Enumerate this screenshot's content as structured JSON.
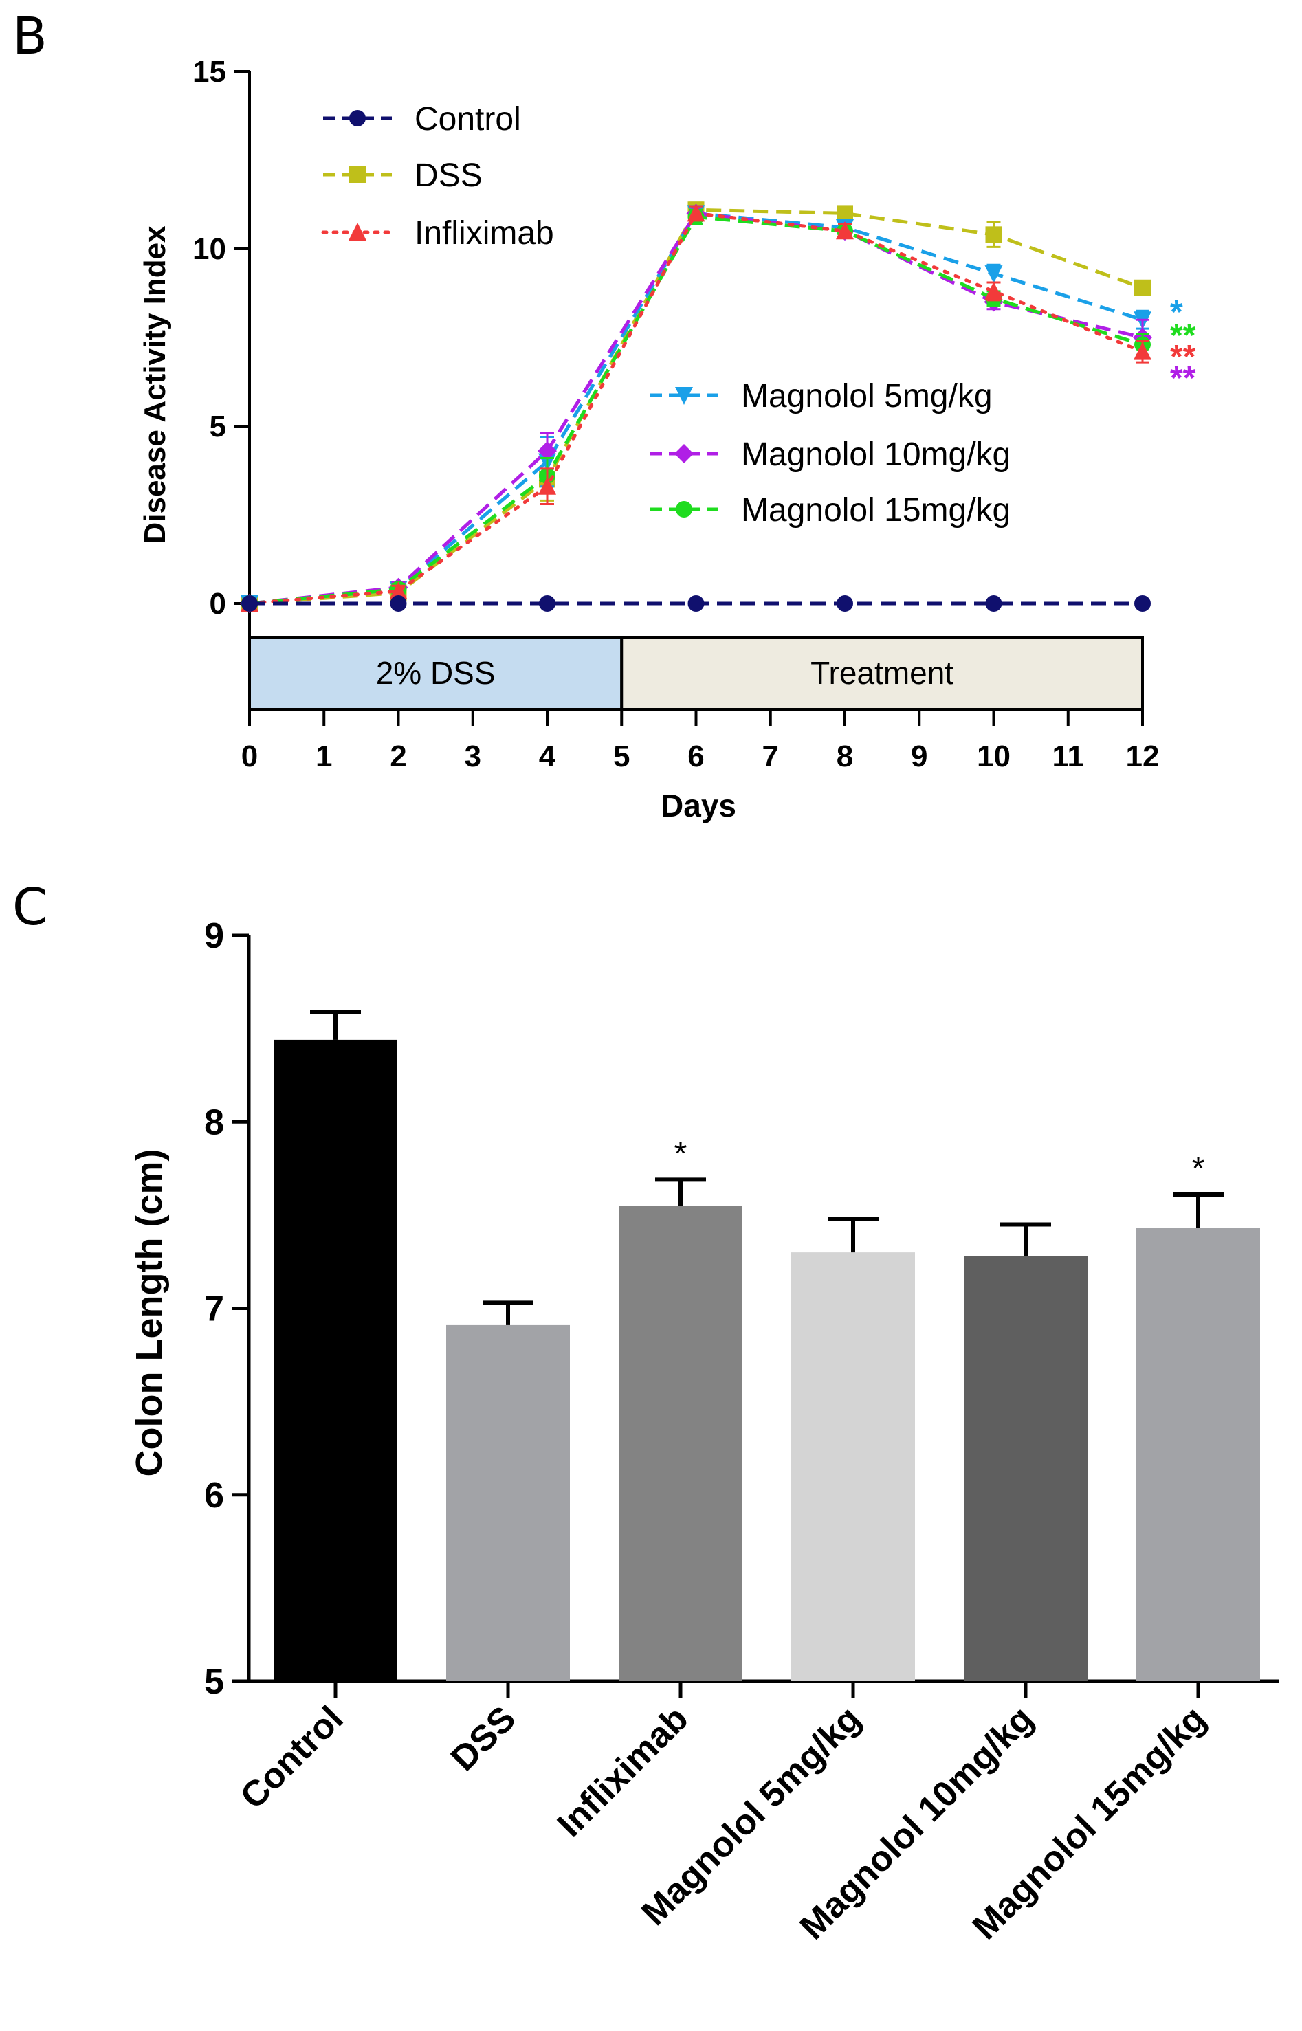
{
  "chart_data": [
    {
      "panel": "B",
      "type": "line",
      "xlabel": "Days",
      "ylabel": "Disease Activity Index",
      "xlim": [
        0,
        12
      ],
      "ylim": [
        0,
        15
      ],
      "x_ticks": [
        0,
        1,
        2,
        3,
        4,
        5,
        6,
        7,
        8,
        9,
        10,
        11,
        12
      ],
      "y_ticks": [
        0,
        5,
        10,
        15
      ],
      "phases": [
        {
          "label": "2% DSS",
          "start": 0,
          "end": 5,
          "color": "#c5dcf0"
        },
        {
          "label": "Treatment",
          "start": 5,
          "end": 12,
          "color": "#eeebe0"
        }
      ],
      "series": [
        {
          "name": "Control",
          "color": "#10106e",
          "marker": "circle",
          "dash": "dashed",
          "x": [
            0,
            2,
            4,
            6,
            8,
            10,
            12
          ],
          "values": [
            0,
            0,
            0,
            0,
            0,
            0,
            0
          ],
          "err": [
            0,
            0,
            0,
            0,
            0,
            0,
            0
          ]
        },
        {
          "name": "DSS",
          "color": "#bfbf1a",
          "marker": "square",
          "dash": "dashed",
          "x": [
            0,
            2,
            4,
            6,
            8,
            10,
            12
          ],
          "values": [
            0,
            0.3,
            3.5,
            11.1,
            11.0,
            10.4,
            8.9
          ],
          "err": [
            0,
            0.15,
            0.6,
            0.2,
            0.2,
            0.35,
            0.2
          ]
        },
        {
          "name": "Infliximab",
          "color": "#f23a3a",
          "marker": "triangle-up",
          "dash": "dotted",
          "x": [
            0,
            2,
            4,
            6,
            8,
            10,
            12
          ],
          "values": [
            0,
            0.35,
            3.3,
            11.0,
            10.5,
            8.8,
            7.1
          ],
          "err": [
            0,
            0.15,
            0.5,
            0.2,
            0.2,
            0.25,
            0.3
          ]
        },
        {
          "name": "Magnolol 5mg/kg",
          "color": "#1aa0e8",
          "marker": "triangle-down",
          "dash": "dashed",
          "x": [
            0,
            2,
            4,
            6,
            8,
            10,
            12
          ],
          "values": [
            0,
            0.4,
            4.0,
            11.0,
            10.6,
            9.3,
            8.0
          ],
          "err": [
            0,
            0.15,
            0.7,
            0.2,
            0.2,
            0.25,
            0.25
          ]
        },
        {
          "name": "Magnolol 10mg/kg",
          "color": "#b01fe6",
          "marker": "diamond",
          "dash": "dashed",
          "x": [
            0,
            2,
            4,
            6,
            8,
            10,
            12
          ],
          "values": [
            0,
            0.45,
            4.3,
            11.0,
            10.5,
            8.5,
            7.5
          ],
          "err": [
            0,
            0.15,
            0.5,
            0.2,
            0.2,
            0.2,
            0.5
          ]
        },
        {
          "name": "Magnolol 15mg/kg",
          "color": "#1fdc1f",
          "marker": "circle",
          "dash": "dashed",
          "x": [
            0,
            2,
            4,
            6,
            8,
            10,
            12
          ],
          "values": [
            0,
            0.4,
            3.6,
            10.9,
            10.5,
            8.6,
            7.3
          ],
          "err": [
            0,
            0.15,
            0.5,
            0.2,
            0.2,
            0.2,
            0.3
          ]
        }
      ],
      "significance": [
        {
          "label": "*",
          "color": "#1aa0e8"
        },
        {
          "label": "**",
          "color": "#1fdc1f"
        },
        {
          "label": "**",
          "color": "#f23a3a"
        },
        {
          "label": "**",
          "color": "#b01fe6"
        }
      ]
    },
    {
      "panel": "C",
      "type": "bar",
      "xlabel": "",
      "ylabel": "Colon Length (cm)",
      "ylim": [
        5,
        9
      ],
      "y_ticks": [
        5,
        6,
        7,
        8,
        9
      ],
      "categories": [
        "Control",
        "DSS",
        "Infliximab",
        "Magnolol 5mg/kg",
        "Magnolol 10mg/kg",
        "Magnolol 15mg/kg"
      ],
      "values": [
        8.44,
        6.91,
        7.55,
        7.3,
        7.28,
        7.43
      ],
      "err": [
        0.15,
        0.12,
        0.14,
        0.18,
        0.17,
        0.18
      ],
      "colors": [
        "#000000",
        "#a2a3a7",
        "#838383",
        "#d4d4d4",
        "#5f5f5f",
        "#a2a3a7"
      ],
      "significance": [
        "",
        "",
        "*",
        "",
        "",
        "*"
      ]
    }
  ]
}
